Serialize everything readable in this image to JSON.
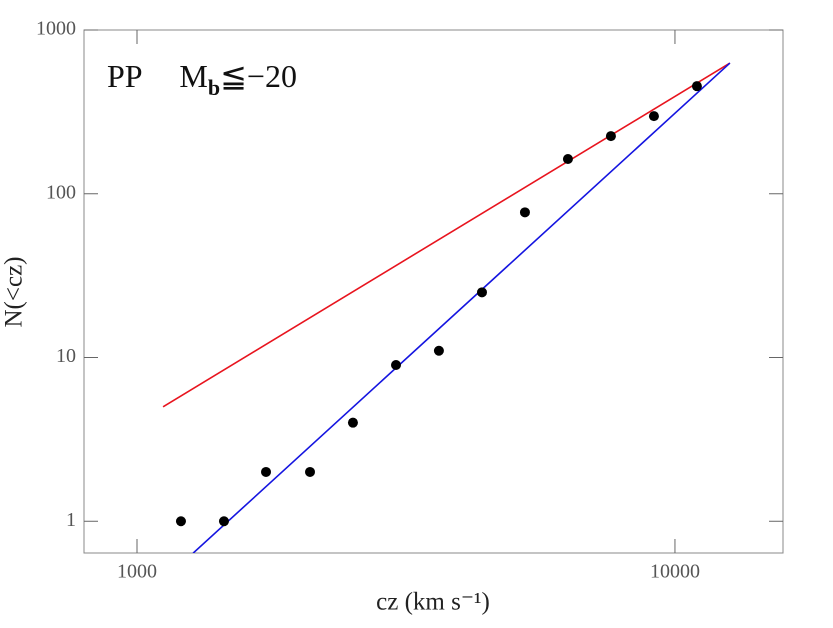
{
  "chart_data": {
    "type": "scatter",
    "xlog": true,
    "ylog": true,
    "xlabel": "cz (km s⁻¹)",
    "ylabel": "N(<cz)",
    "annotation": {
      "sample": "PP",
      "symbol": "M",
      "subscript": "b",
      "relation": "≦−20"
    },
    "xlim": [
      797,
      15880
    ],
    "ylim": [
      0.64,
      1000
    ],
    "xticks": [
      1000,
      10000
    ],
    "yticks": [
      1,
      10,
      100,
      1000
    ],
    "series": [
      {
        "type": "scatter",
        "color": "#000000",
        "x": [
          1207,
          1451,
          1737,
          2097,
          2520,
          3030,
          3641,
          4378,
          5262,
          6325,
          7603,
          9140,
          10986
        ],
        "values": [
          1,
          1,
          2,
          2,
          4,
          9,
          11,
          25,
          77,
          163,
          225,
          298,
          454
        ]
      },
      {
        "type": "line",
        "color": "#e8141e",
        "x": [
          1118,
          12652
        ],
        "values": [
          5,
          628
        ]
      },
      {
        "type": "line",
        "color": "#1414e0",
        "x": [
          1271,
          12652
        ],
        "values": [
          0.638,
          628
        ]
      }
    ]
  }
}
